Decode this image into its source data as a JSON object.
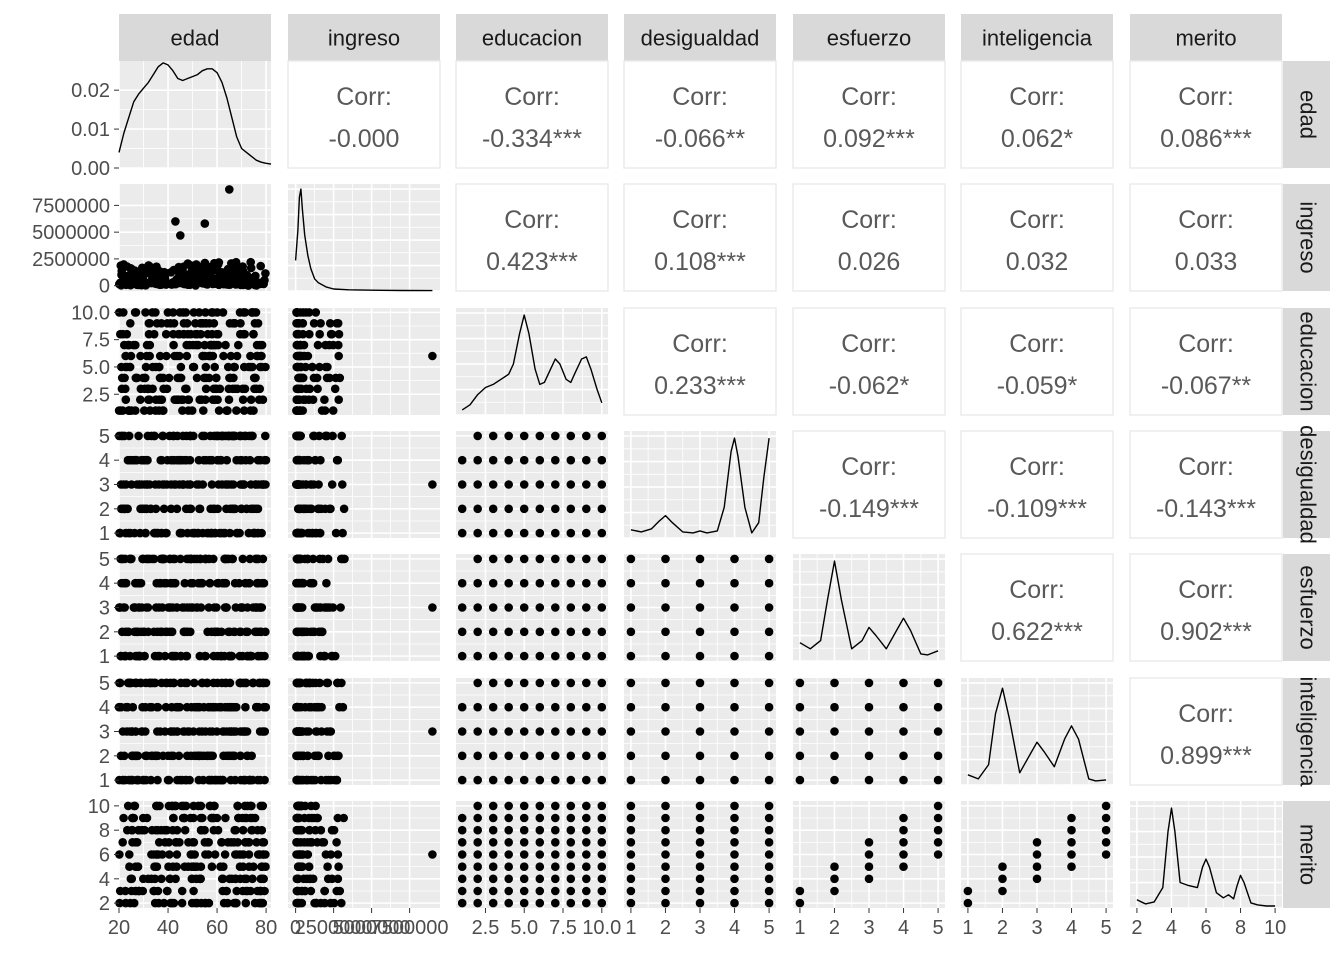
{
  "chart_data": {
    "type": "scatter",
    "title": "",
    "variables": [
      "edad",
      "ingreso",
      "educacion",
      "desigualdad",
      "esfuerzo",
      "inteligencia",
      "merito"
    ],
    "corr_label": "Corr:",
    "correlations": [
      {
        "row": "edad",
        "col": "ingreso",
        "text": "-0.000"
      },
      {
        "row": "edad",
        "col": "educacion",
        "text": "-0.334***"
      },
      {
        "row": "edad",
        "col": "desigualdad",
        "text": "-0.066**"
      },
      {
        "row": "edad",
        "col": "esfuerzo",
        "text": "0.092***"
      },
      {
        "row": "edad",
        "col": "inteligencia",
        "text": "0.062*"
      },
      {
        "row": "edad",
        "col": "merito",
        "text": "0.086***"
      },
      {
        "row": "ingreso",
        "col": "educacion",
        "text": "0.423***"
      },
      {
        "row": "ingreso",
        "col": "desigualdad",
        "text": "0.108***"
      },
      {
        "row": "ingreso",
        "col": "esfuerzo",
        "text": "0.026"
      },
      {
        "row": "ingreso",
        "col": "inteligencia",
        "text": "0.032"
      },
      {
        "row": "ingreso",
        "col": "merito",
        "text": "0.033"
      },
      {
        "row": "educacion",
        "col": "desigualdad",
        "text": "0.233***"
      },
      {
        "row": "educacion",
        "col": "esfuerzo",
        "text": "-0.062*"
      },
      {
        "row": "educacion",
        "col": "inteligencia",
        "text": "-0.059*"
      },
      {
        "row": "educacion",
        "col": "merito",
        "text": "-0.067**"
      },
      {
        "row": "desigualdad",
        "col": "esfuerzo",
        "text": "-0.149***"
      },
      {
        "row": "desigualdad",
        "col": "inteligencia",
        "text": "-0.109***"
      },
      {
        "row": "desigualdad",
        "col": "merito",
        "text": "-0.143***"
      },
      {
        "row": "esfuerzo",
        "col": "inteligencia",
        "text": "0.622***"
      },
      {
        "row": "esfuerzo",
        "col": "merito",
        "text": "0.902***"
      },
      {
        "row": "inteligencia",
        "col": "merito",
        "text": "0.899***"
      }
    ],
    "axes": {
      "edad": {
        "range": [
          20,
          82
        ],
        "ticks": [
          20,
          40,
          60,
          80
        ]
      },
      "ingreso": {
        "range": [
          -500000,
          9500000
        ],
        "ticks": [
          0,
          2500000,
          5000000,
          7500000
        ]
      },
      "educacion": {
        "range": [
          0.6,
          10.4
        ],
        "ticks": [
          2.5,
          5.0,
          7.5,
          10.0
        ]
      },
      "desigualdad": {
        "range": [
          0.8,
          5.2
        ],
        "ticks": [
          1,
          2,
          3,
          4,
          5
        ]
      },
      "esfuerzo": {
        "range": [
          0.8,
          5.2
        ],
        "ticks": [
          1,
          2,
          3,
          4,
          5
        ]
      },
      "inteligencia": {
        "range": [
          0.8,
          5.2
        ],
        "ticks": [
          1,
          2,
          3,
          4,
          5
        ]
      },
      "merito": {
        "range": [
          1.6,
          10.4
        ],
        "ticks": [
          2,
          4,
          6,
          8,
          10
        ]
      }
    },
    "left_tick_labels": {
      "edad": [
        "0.00",
        "0.01",
        "0.02"
      ],
      "ingreso": [
        "0",
        "2500000",
        "5000000",
        "7500000"
      ],
      "educacion": [
        "2.5",
        "5.0",
        "7.5",
        "10.0"
      ],
      "desigualdad": [
        "1",
        "2",
        "3",
        "4",
        "5"
      ],
      "esfuerzo": [
        "1",
        "2",
        "3",
        "4",
        "5"
      ],
      "inteligencia": [
        "1",
        "2",
        "3",
        "4",
        "5"
      ],
      "merito": [
        "2",
        "4",
        "6",
        "8",
        "10"
      ]
    },
    "bottom_tick_labels": {
      "edad": [
        "20",
        "40",
        "60",
        "80"
      ],
      "ingreso": [
        "0",
        "2500000",
        "5000000",
        "7500000"
      ],
      "educacion": [
        "2.5",
        "5.0",
        "7.5",
        "10.0"
      ],
      "desigualdad": [
        "1",
        "2",
        "3",
        "4",
        "5"
      ],
      "esfuerzo": [
        "1",
        "2",
        "3",
        "4",
        "5"
      ],
      "inteligencia": [
        "1",
        "2",
        "3",
        "4",
        "5"
      ],
      "merito": [
        "2",
        "4",
        "6",
        "8",
        "10"
      ]
    },
    "edad_density_axis": {
      "range": [
        0,
        0.0275
      ],
      "ticks": [
        0,
        0.01,
        0.02
      ]
    },
    "densities": {
      "edad": [
        [
          20,
          0.004
        ],
        [
          22,
          0.009
        ],
        [
          24,
          0.013
        ],
        [
          26,
          0.017
        ],
        [
          28,
          0.019
        ],
        [
          30,
          0.0205
        ],
        [
          32,
          0.022
        ],
        [
          34,
          0.024
        ],
        [
          36,
          0.026
        ],
        [
          38,
          0.027
        ],
        [
          40,
          0.0265
        ],
        [
          42,
          0.025
        ],
        [
          44,
          0.023
        ],
        [
          46,
          0.0225
        ],
        [
          48,
          0.023
        ],
        [
          50,
          0.0235
        ],
        [
          52,
          0.024
        ],
        [
          54,
          0.025
        ],
        [
          56,
          0.0255
        ],
        [
          58,
          0.0255
        ],
        [
          60,
          0.0245
        ],
        [
          62,
          0.022
        ],
        [
          64,
          0.018
        ],
        [
          66,
          0.013
        ],
        [
          68,
          0.008
        ],
        [
          70,
          0.005
        ],
        [
          72,
          0.004
        ],
        [
          74,
          0.003
        ],
        [
          76,
          0.002
        ],
        [
          78,
          0.0015
        ],
        [
          80,
          0.0012
        ],
        [
          82,
          0.001
        ]
      ],
      "ingreso": [
        [
          0,
          0.3
        ],
        [
          150000,
          0.6
        ],
        [
          250000,
          0.92
        ],
        [
          350000,
          1.0
        ],
        [
          450000,
          0.8
        ],
        [
          600000,
          0.55
        ],
        [
          800000,
          0.35
        ],
        [
          1000000,
          0.22
        ],
        [
          1250000,
          0.12
        ],
        [
          1500000,
          0.08
        ],
        [
          2000000,
          0.04
        ],
        [
          2500000,
          0.02
        ],
        [
          3500000,
          0.012
        ],
        [
          5000000,
          0.008
        ],
        [
          7000000,
          0.005
        ],
        [
          9000000,
          0.004
        ]
      ],
      "educacion": [
        [
          1,
          0.05
        ],
        [
          1.5,
          0.1
        ],
        [
          2,
          0.2
        ],
        [
          2.5,
          0.27
        ],
        [
          3,
          0.3
        ],
        [
          3.5,
          0.35
        ],
        [
          4,
          0.4
        ],
        [
          4.3,
          0.5
        ],
        [
          4.7,
          0.8
        ],
        [
          5,
          0.98
        ],
        [
          5.3,
          0.8
        ],
        [
          5.7,
          0.45
        ],
        [
          6,
          0.3
        ],
        [
          6.3,
          0.32
        ],
        [
          6.7,
          0.45
        ],
        [
          7,
          0.55
        ],
        [
          7.3,
          0.5
        ],
        [
          7.7,
          0.35
        ],
        [
          8,
          0.32
        ],
        [
          8.3,
          0.42
        ],
        [
          8.7,
          0.55
        ],
        [
          9,
          0.57
        ],
        [
          9.3,
          0.45
        ],
        [
          9.7,
          0.25
        ],
        [
          10,
          0.12
        ]
      ],
      "desigualdad": [
        [
          1,
          0.08
        ],
        [
          1.3,
          0.06
        ],
        [
          1.6,
          0.09
        ],
        [
          1.8,
          0.16
        ],
        [
          2,
          0.22
        ],
        [
          2.2,
          0.15
        ],
        [
          2.5,
          0.06
        ],
        [
          2.8,
          0.05
        ],
        [
          3,
          0.07
        ],
        [
          3.2,
          0.05
        ],
        [
          3.5,
          0.07
        ],
        [
          3.7,
          0.3
        ],
        [
          3.9,
          0.85
        ],
        [
          4,
          0.98
        ],
        [
          4.1,
          0.8
        ],
        [
          4.3,
          0.3
        ],
        [
          4.5,
          0.05
        ],
        [
          4.7,
          0.15
        ],
        [
          4.85,
          0.6
        ],
        [
          5,
          0.98
        ]
      ],
      "esfuerzo": [
        [
          1,
          0.18
        ],
        [
          1.3,
          0.12
        ],
        [
          1.6,
          0.2
        ],
        [
          1.8,
          0.6
        ],
        [
          2,
          0.98
        ],
        [
          2.2,
          0.6
        ],
        [
          2.5,
          0.12
        ],
        [
          2.8,
          0.2
        ],
        [
          3,
          0.33
        ],
        [
          3.2,
          0.25
        ],
        [
          3.5,
          0.12
        ],
        [
          3.8,
          0.3
        ],
        [
          4,
          0.42
        ],
        [
          4.2,
          0.3
        ],
        [
          4.5,
          0.07
        ],
        [
          4.7,
          0.06
        ],
        [
          5,
          0.1
        ]
      ],
      "inteligencia": [
        [
          1,
          0.1
        ],
        [
          1.3,
          0.06
        ],
        [
          1.6,
          0.2
        ],
        [
          1.8,
          0.7
        ],
        [
          2,
          0.95
        ],
        [
          2.2,
          0.65
        ],
        [
          2.5,
          0.12
        ],
        [
          2.8,
          0.3
        ],
        [
          3,
          0.42
        ],
        [
          3.2,
          0.33
        ],
        [
          3.5,
          0.18
        ],
        [
          3.8,
          0.45
        ],
        [
          4,
          0.58
        ],
        [
          4.2,
          0.45
        ],
        [
          4.5,
          0.06
        ],
        [
          4.7,
          0.04
        ],
        [
          5,
          0.05
        ]
      ],
      "merito": [
        [
          2,
          0.08
        ],
        [
          2.5,
          0.04
        ],
        [
          3,
          0.06
        ],
        [
          3.5,
          0.2
        ],
        [
          3.8,
          0.75
        ],
        [
          4,
          0.98
        ],
        [
          4.2,
          0.75
        ],
        [
          4.5,
          0.25
        ],
        [
          5,
          0.22
        ],
        [
          5.5,
          0.2
        ],
        [
          5.8,
          0.4
        ],
        [
          6,
          0.48
        ],
        [
          6.2,
          0.4
        ],
        [
          6.6,
          0.15
        ],
        [
          7,
          0.1
        ],
        [
          7.3,
          0.13
        ],
        [
          7.6,
          0.09
        ],
        [
          7.8,
          0.22
        ],
        [
          8,
          0.32
        ],
        [
          8.2,
          0.25
        ],
        [
          8.6,
          0.05
        ],
        [
          9,
          0.03
        ],
        [
          9.5,
          0.02
        ],
        [
          10,
          0.02
        ]
      ]
    },
    "grid": true,
    "colors": {
      "panel_bg": "#ebebeb",
      "strip_bg": "#d9d9d9",
      "grid": "#ffffff",
      "points": "#000000",
      "corr_text": "#595959",
      "axis_text": "#4d4d4d",
      "strip_text": "#1a1a1a"
    }
  }
}
